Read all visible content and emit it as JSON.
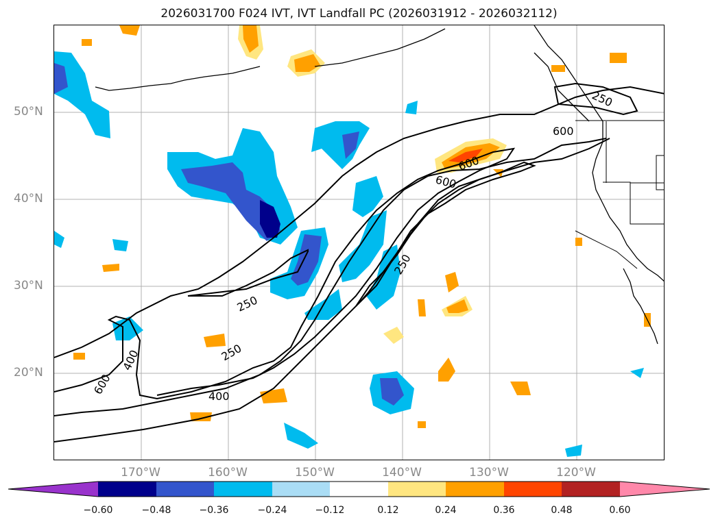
{
  "title": "2026031700 F024 IVT, IVT Landfall PC (2026031912 - 2026032112)",
  "lon_labels": [
    "170°W",
    "160°W",
    "150°W",
    "140°W",
    "130°W",
    "120°W"
  ],
  "lat_labels": [
    "50°N",
    "40°N",
    "30°N",
    "20°N"
  ],
  "contour_labels": [
    "250",
    "250",
    "250",
    "250",
    "400",
    "400",
    "600",
    "600",
    "600",
    "600"
  ],
  "colorbar": {
    "ticks": [
      "−0.60",
      "−0.48",
      "−0.36",
      "−0.24",
      "−0.12",
      "0.12",
      "0.24",
      "0.36",
      "0.48",
      "0.60"
    ],
    "colors": [
      "#9933cc",
      "#00008b",
      "#3355cc",
      "#00bbee",
      "#aaddf5",
      "#ffffff",
      "#ffe680",
      "#ffa000",
      "#ff4500",
      "#b22222",
      "#ff88aa"
    ]
  }
}
